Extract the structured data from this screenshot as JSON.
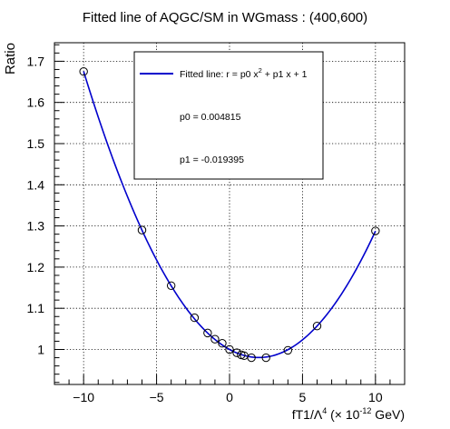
{
  "chart_data": {
    "type": "scatter",
    "title": "Fitted line of AQGC/SM in WGmass : (400,600)",
    "ylabel": "Ratio",
    "xlabel": {
      "prefix": "fT1/Λ",
      "prefix_sup": "4",
      "middle": " (× 10",
      "middle_sup": "-12",
      "suffix": " GeV)"
    },
    "xlim": [
      -12,
      12
    ],
    "ylim": [
      0.915,
      1.745
    ],
    "x_ticks": [
      -10,
      -5,
      0,
      5,
      10
    ],
    "x_tick_labels": [
      "−10",
      "−5",
      "0",
      "5",
      "10"
    ],
    "y_ticks": [
      1.0,
      1.1,
      1.2,
      1.3,
      1.4,
      1.5,
      1.6,
      1.7
    ],
    "y_tick_labels": [
      "1",
      "1.1",
      "1.2",
      "1.3",
      "1.4",
      "1.5",
      "1.6",
      "1.7"
    ],
    "grid": true,
    "series": [
      {
        "kind": "points",
        "x": [
          -10,
          -6,
          -4,
          -2.4,
          -1.5,
          -1.0,
          -0.5,
          0,
          0.5,
          0.8,
          1.0,
          1.5,
          2.5,
          4,
          6,
          10
        ],
        "y": [
          1.675,
          1.29,
          1.155,
          1.077,
          1.04,
          1.025,
          1.015,
          1.0,
          0.992,
          0.987,
          0.985,
          0.98,
          0.98,
          0.998,
          1.057,
          1.288
        ]
      },
      {
        "kind": "fit",
        "name": "Fitted line: r =  p0 x² + p1 x + 1",
        "p0": 0.004815,
        "p1": -0.019395,
        "color": "#0000cc"
      }
    ],
    "legend": {
      "position": "top-center",
      "entry_prefix": "Fitted line: r =  p0 x",
      "entry_sup": "2",
      "entry_suffix": " + p1 x + 1",
      "p0_text": "p0 = 0.004815",
      "p1_text": "p1 = -0.019395"
    }
  }
}
